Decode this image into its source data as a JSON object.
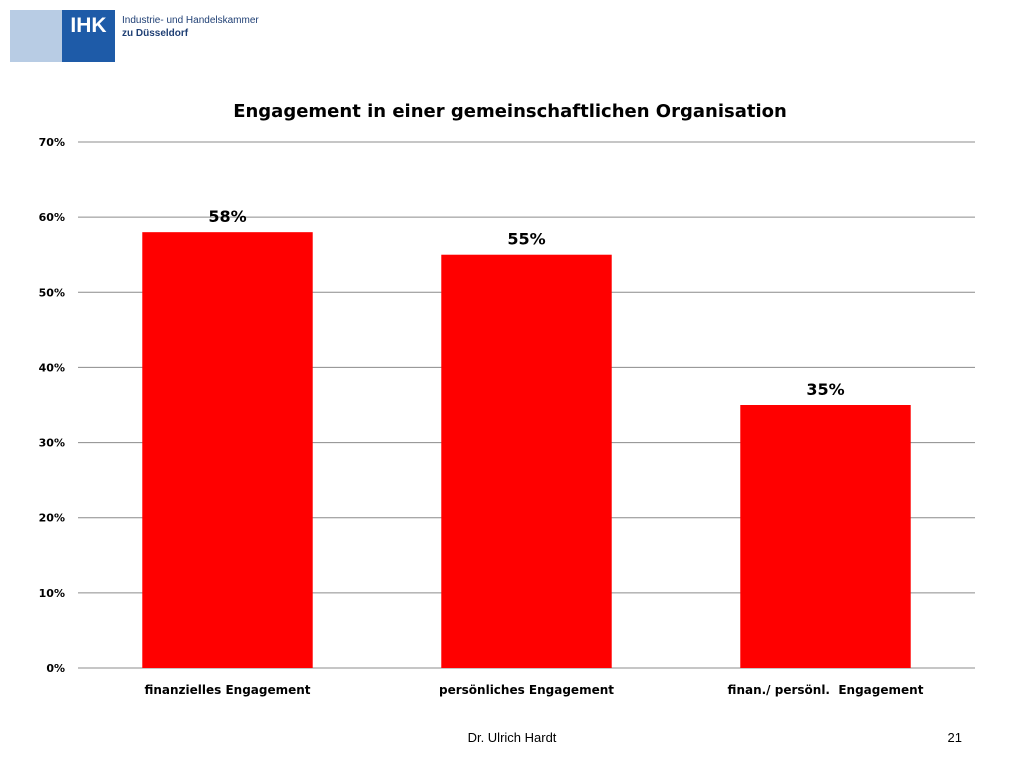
{
  "logo": {
    "abbr": "IHK",
    "line1": "Industrie- und Handelskammer",
    "line2": "zu Düsseldorf"
  },
  "chart_data": {
    "type": "bar",
    "title": "Engagement in einer gemeinschaftlichen Organisation",
    "categories": [
      "finanzielles Engagement",
      "persönliches Engagement",
      "finan./ persönl.  Engagement"
    ],
    "values": [
      0.58,
      0.55,
      0.35
    ],
    "data_labels": [
      "58%",
      "55%",
      "35%"
    ],
    "bar_color": "#ff0000",
    "ylim": [
      0,
      0.7
    ],
    "yticks": [
      0,
      0.1,
      0.2,
      0.3,
      0.4,
      0.5,
      0.6,
      0.7
    ],
    "ytick_labels": [
      "0%",
      "10%",
      "20%",
      "30%",
      "40%",
      "50%",
      "60%",
      "70%"
    ],
    "grid": true,
    "legend": "none",
    "xlabel": "",
    "ylabel": ""
  },
  "footer": {
    "author": "Dr. Ulrich Hardt",
    "page": "21"
  }
}
